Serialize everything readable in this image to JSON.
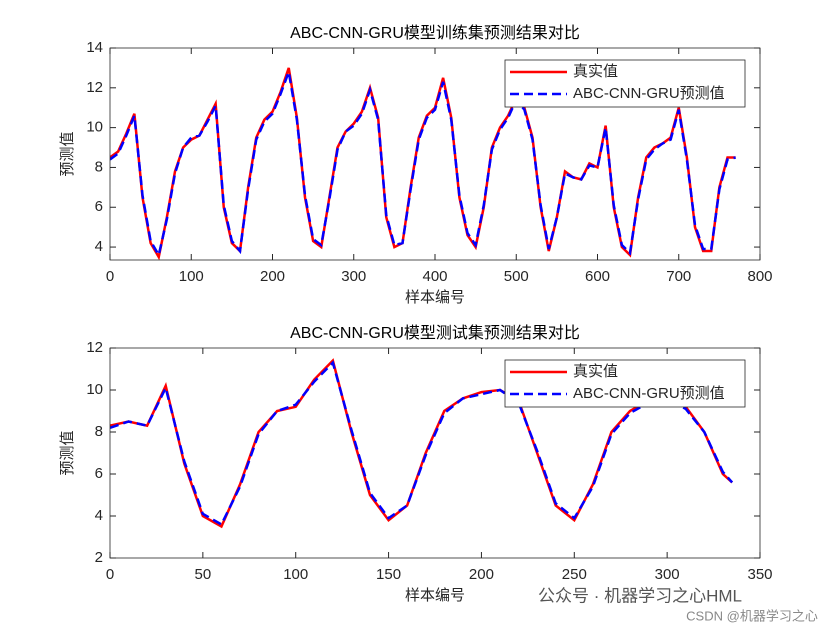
{
  "chart_data": [
    {
      "type": "line",
      "title": "ABC-CNN-GRU模型训练集预测结果对比",
      "xlabel": "样本编号",
      "ylabel": "预测值",
      "x": [
        0,
        10,
        20,
        30,
        40,
        50,
        60,
        70,
        80,
        90,
        100,
        110,
        120,
        130,
        140,
        150,
        160,
        170,
        180,
        190,
        200,
        210,
        220,
        230,
        240,
        250,
        260,
        270,
        280,
        290,
        300,
        310,
        320,
        330,
        340,
        350,
        360,
        370,
        380,
        390,
        400,
        410,
        420,
        430,
        440,
        450,
        460,
        470,
        480,
        490,
        500,
        510,
        520,
        530,
        540,
        550,
        560,
        570,
        580,
        590,
        600,
        610,
        620,
        630,
        640,
        650,
        660,
        670,
        680,
        690,
        700,
        710,
        720,
        730,
        740,
        750,
        760,
        770
      ],
      "series": [
        {
          "name": "真实值",
          "color": "#ff0000",
          "dash": false,
          "values": [
            8.5,
            8.8,
            9.7,
            10.7,
            6.5,
            4.2,
            3.5,
            5.5,
            7.8,
            9.0,
            9.4,
            9.6,
            10.4,
            11.2,
            6.0,
            4.2,
            3.8,
            7.0,
            9.5,
            10.4,
            10.8,
            11.8,
            13.0,
            10.5,
            6.5,
            4.3,
            4.0,
            6.5,
            9.0,
            9.8,
            10.2,
            10.8,
            12.0,
            10.5,
            5.5,
            4.0,
            4.2,
            7.0,
            9.5,
            10.6,
            11.0,
            12.5,
            10.5,
            6.5,
            4.6,
            4.0,
            6.0,
            9.0,
            10.0,
            10.6,
            11.5,
            11.0,
            9.5,
            6.0,
            3.8,
            5.5,
            7.8,
            7.5,
            7.4,
            8.2,
            8.0,
            10.1,
            6.0,
            4.0,
            3.6,
            6.5,
            8.5,
            9.0,
            9.2,
            9.5,
            11.0,
            8.5,
            5.0,
            3.8,
            3.8,
            7.0,
            8.5,
            8.5
          ]
        },
        {
          "name": "ABC-CNN-GRU预测值",
          "color": "#0000ff",
          "dash": true,
          "values": [
            8.4,
            8.7,
            9.6,
            10.6,
            6.6,
            4.3,
            3.6,
            5.4,
            7.7,
            9.0,
            9.5,
            9.6,
            10.3,
            11.1,
            6.1,
            4.3,
            3.8,
            6.9,
            9.4,
            10.3,
            10.7,
            11.7,
            12.8,
            10.4,
            6.6,
            4.4,
            4.1,
            6.4,
            8.9,
            9.8,
            10.1,
            10.7,
            11.9,
            10.4,
            5.6,
            4.1,
            4.2,
            6.9,
            9.4,
            10.5,
            10.9,
            12.3,
            10.4,
            6.6,
            4.7,
            4.1,
            6.1,
            8.9,
            9.9,
            10.5,
            11.4,
            10.9,
            9.4,
            6.1,
            3.9,
            5.5,
            7.7,
            7.5,
            7.4,
            8.1,
            8.0,
            10.0,
            6.1,
            4.1,
            3.7,
            6.4,
            8.4,
            8.9,
            9.2,
            9.4,
            10.9,
            8.4,
            5.1,
            3.9,
            3.9,
            6.9,
            8.4,
            8.5
          ]
        }
      ],
      "xlim": [
        0,
        800
      ],
      "ylim": [
        3.35,
        14
      ],
      "xticks": [
        0,
        100,
        200,
        300,
        400,
        500,
        600,
        700,
        800
      ],
      "yticks": [
        4,
        6,
        8,
        10,
        12,
        14
      ],
      "legend": "northeast"
    },
    {
      "type": "line",
      "title": "ABC-CNN-GRU模型测试集预测结果对比",
      "xlabel": "样本编号",
      "ylabel": "预测值",
      "x": [
        0,
        10,
        20,
        30,
        40,
        50,
        60,
        70,
        80,
        90,
        100,
        110,
        120,
        130,
        140,
        150,
        160,
        170,
        180,
        190,
        200,
        210,
        220,
        230,
        240,
        250,
        260,
        270,
        280,
        290,
        300,
        310,
        320,
        330,
        335
      ],
      "series": [
        {
          "name": "真实值",
          "color": "#ff0000",
          "dash": false,
          "values": [
            8.3,
            8.5,
            8.3,
            10.2,
            6.5,
            4.0,
            3.5,
            5.5,
            8.0,
            9.0,
            9.2,
            10.5,
            11.4,
            8.0,
            5.0,
            3.8,
            4.5,
            7.0,
            9.0,
            9.6,
            9.9,
            10.0,
            9.5,
            7.0,
            4.5,
            3.8,
            5.5,
            8.0,
            9.0,
            9.5,
            9.6,
            9.2,
            8.0,
            6.0,
            5.6
          ]
        },
        {
          "name": "ABC-CNN-GRU预测值",
          "color": "#0000ff",
          "dash": true,
          "values": [
            8.2,
            8.5,
            8.3,
            10.1,
            6.6,
            4.1,
            3.6,
            5.4,
            7.9,
            9.0,
            9.3,
            10.4,
            11.3,
            8.1,
            5.1,
            3.9,
            4.5,
            6.9,
            8.9,
            9.6,
            9.8,
            10.0,
            9.4,
            7.1,
            4.6,
            3.9,
            5.4,
            7.9,
            8.9,
            9.4,
            9.6,
            9.1,
            8.0,
            6.1,
            5.6
          ]
        }
      ],
      "xlim": [
        0,
        350
      ],
      "ylim": [
        2,
        12
      ],
      "xticks": [
        0,
        50,
        100,
        150,
        200,
        250,
        300,
        350
      ],
      "yticks": [
        2,
        4,
        6,
        8,
        10,
        12
      ],
      "legend": "northeast"
    }
  ],
  "watermarks": [
    "公众号 · 机器学习之心HML",
    "CSDN @机器学习之心"
  ]
}
